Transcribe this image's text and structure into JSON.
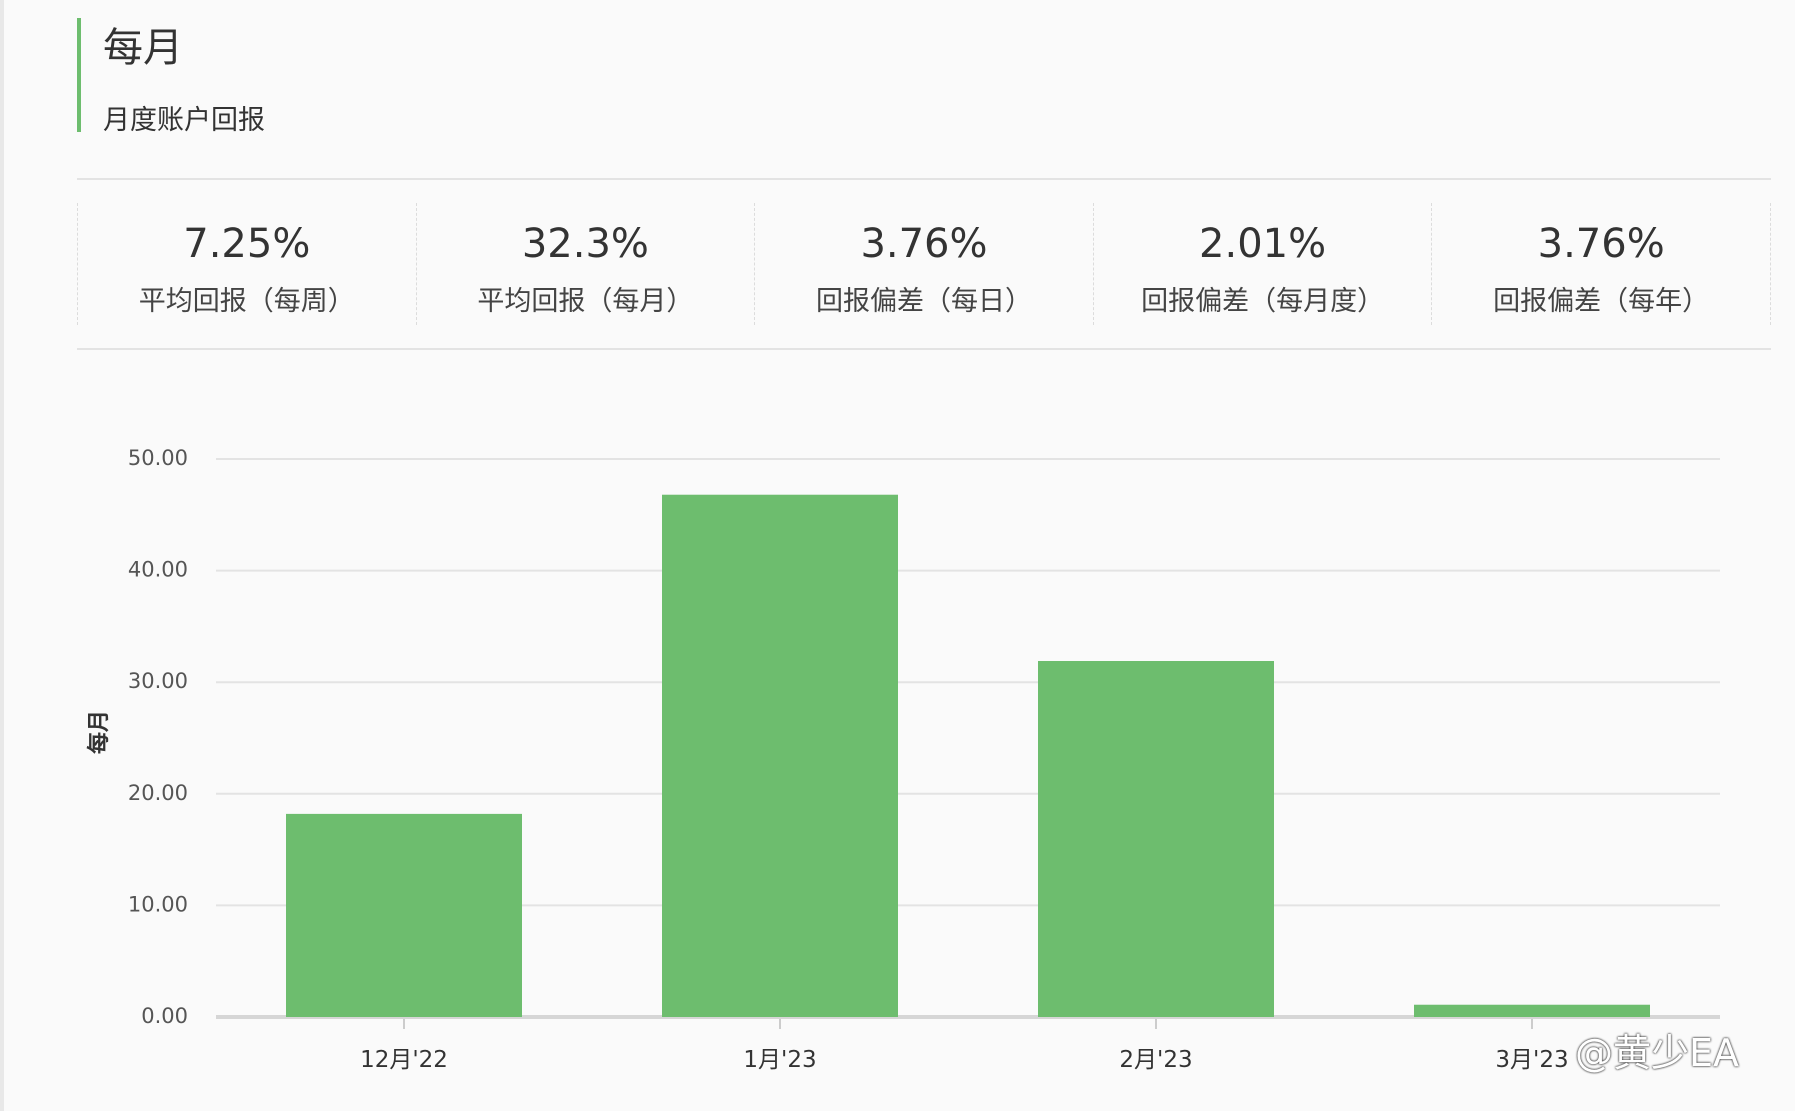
{
  "header": {
    "title": "每月",
    "subtitle": "月度账户回报"
  },
  "stats": [
    {
      "value": "7.25%",
      "label": "平均回报（每周）"
    },
    {
      "value": "32.3%",
      "label": "平均回报（每月）"
    },
    {
      "value": "3.76%",
      "label": "回报偏差（每日）"
    },
    {
      "value": "2.01%",
      "label": "回报偏差（每月度）"
    },
    {
      "value": "3.76%",
      "label": "回报偏差（每年）"
    }
  ],
  "watermark": "@黄少EA",
  "colors": {
    "bar": "#6dbd6e",
    "accent": "#6dbd6e",
    "grid": "#e3e3e3",
    "axis_text": "#555555"
  },
  "chart_data": {
    "type": "bar",
    "title": "",
    "xlabel": "",
    "ylabel": "每月",
    "categories": [
      "12月'22",
      "1月'23",
      "2月'23",
      "3月'23"
    ],
    "values": [
      18.2,
      46.8,
      31.9,
      1.1
    ],
    "ylim": [
      0,
      50
    ],
    "yticks": [
      0,
      10,
      20,
      30,
      40,
      50
    ],
    "ytick_labels": [
      "0.00",
      "10.00",
      "20.00",
      "30.00",
      "40.00",
      "50.00"
    ],
    "grid": true,
    "legend": "none"
  }
}
